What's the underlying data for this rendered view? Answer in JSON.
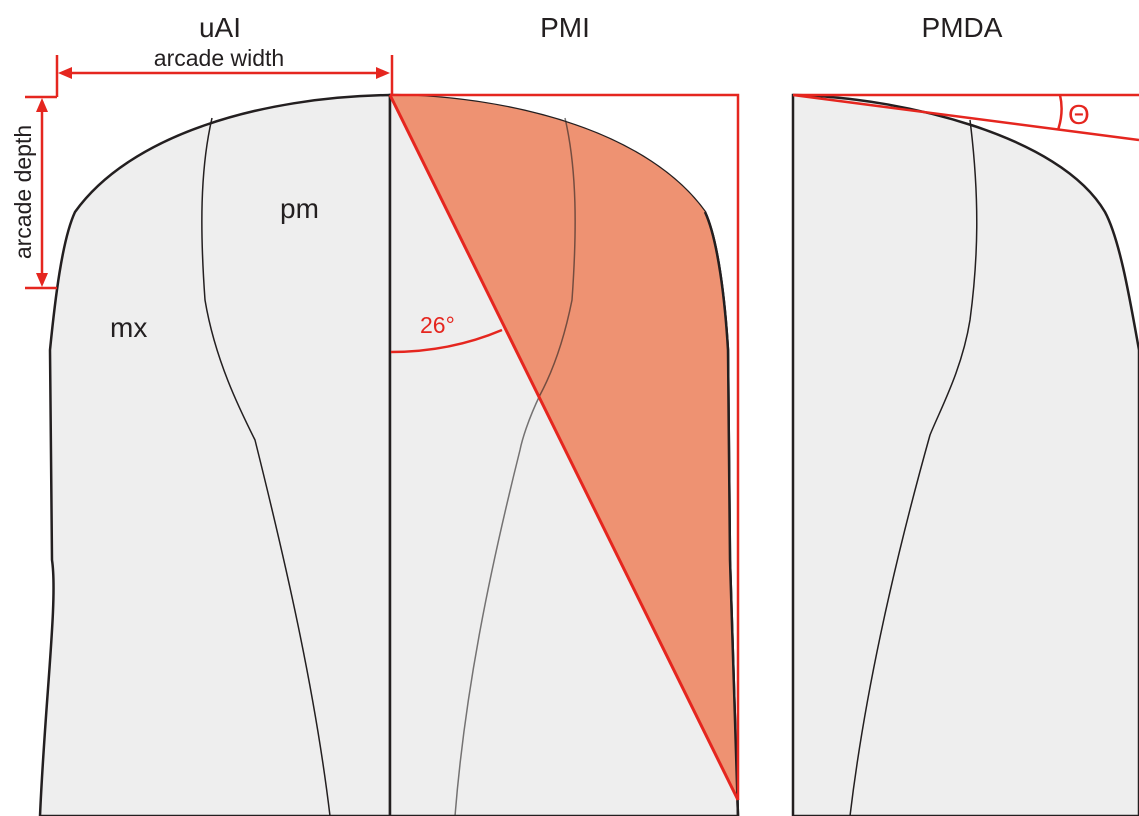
{
  "panels": [
    {
      "title": "uAI",
      "measures": {
        "width": "arcade width",
        "depth": "arcade depth"
      },
      "regions": {
        "premaxilla": "pm",
        "maxilla": "mx"
      }
    },
    {
      "title": "PMI",
      "angle": "26°"
    },
    {
      "title": "PMDA",
      "angle": "Θ"
    }
  ]
}
